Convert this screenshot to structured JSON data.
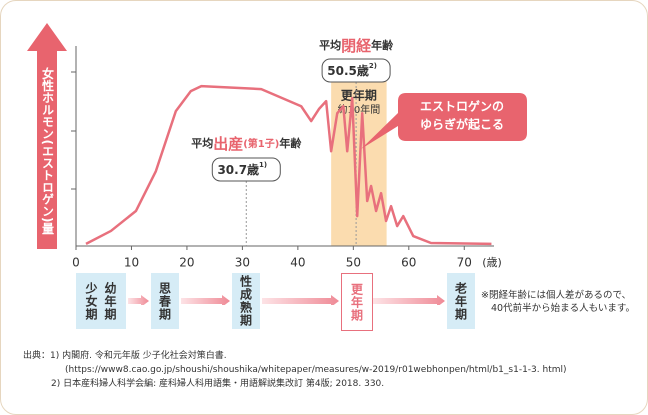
{
  "chart_data": {
    "type": "line",
    "y_label": "女性ホルモン(エストロゲン)量",
    "x_unit": "(歳)",
    "xlim": [
      0,
      75
    ],
    "xticks": [
      0,
      10,
      20,
      30,
      40,
      50,
      60,
      70
    ],
    "ylim": [
      0,
      85
    ],
    "color": "#e8707d",
    "x": [
      1.8,
      6.3,
      10.8,
      14.4,
      18.0,
      20.7,
      22.6,
      33.4,
      40.6,
      42.4,
      43.8,
      45.1,
      46.0,
      47.1,
      48.2,
      48.9,
      49.8,
      50.7,
      51.6,
      52.5,
      53.2,
      54.1,
      55.0,
      55.9,
      56.8,
      57.9,
      59.0,
      60.8,
      64.0,
      74.9
    ],
    "values": [
      0.9,
      6.5,
      15.1,
      32.3,
      58.2,
      66.8,
      69.0,
      67.7,
      60.3,
      53.9,
      59.1,
      62.5,
      40.9,
      57.3,
      60.3,
      40.9,
      63.8,
      12.9,
      57.3,
      19.4,
      25.9,
      15.1,
      22.8,
      10.8,
      17.2,
      8.6,
      12.9,
      4.3,
      1.3,
      0.9
    ],
    "band": {
      "x": [
        46,
        56
      ],
      "color": "#fbdcaf",
      "title": "更年期",
      "subtitle": "約10年間"
    },
    "annotations": [
      {
        "prefix": "平均",
        "emphasis": "出産",
        "paren": "(第1子)",
        "suffix": "年齢",
        "value": 30.7,
        "value_label": "30.7歳",
        "note": "1)"
      },
      {
        "prefix": "平均",
        "emphasis": "閉経",
        "suffix": "年齢",
        "value": 50.5,
        "value_label": "50.5歳",
        "note": "2)"
      }
    ],
    "callout": [
      "エストロゲンの",
      "ゆらぎが起こる"
    ]
  },
  "stages": [
    {
      "label": [
        "幼年期",
        "少女期"
      ]
    },
    {
      "label": [
        "思春期"
      ]
    },
    {
      "label": [
        "性成熟期"
      ]
    },
    {
      "label": [
        "更年期"
      ],
      "highlight": true
    },
    {
      "label": [
        "老年期"
      ]
    }
  ],
  "note": [
    "※閉経年齢には個人差があるので、",
    "40代前半から始まる人もいます。"
  ],
  "sources": {
    "prefix": "出典：",
    "lines": [
      "1) 内閣府. 令和元年版 少子化社会対策白書.",
      "(https://www8.cao.go.jp/shoushi/shoushika/whitepaper/measures/w-2019/r01webhonpen/html/b1_s1-1-3. html)",
      "2) 日本産科婦人科学会編: 産科婦人科用語集・用語解説集改訂 第4版; 2018. 330."
    ]
  }
}
